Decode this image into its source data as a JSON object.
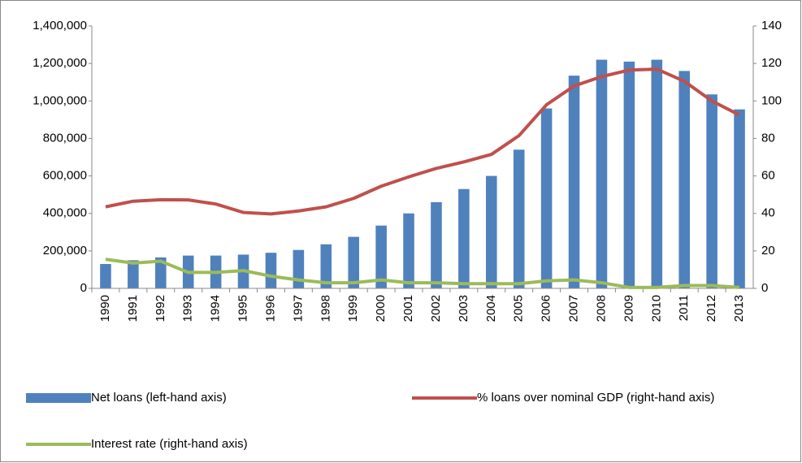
{
  "chart_data": {
    "type": "bar_line",
    "categories": [
      "1990",
      "1991",
      "1992",
      "1993",
      "1994",
      "1995",
      "1996",
      "1997",
      "1998",
      "1999",
      "2000",
      "2001",
      "2002",
      "2003",
      "2004",
      "2005",
      "2006",
      "2007",
      "2008",
      "2009",
      "2010",
      "2011",
      "2012",
      "2013"
    ],
    "series": [
      {
        "name": "Net loans (left-hand axis)",
        "type": "bar",
        "color": "#4f81bd",
        "values": [
          130000,
          150000,
          165000,
          175000,
          175000,
          180000,
          190000,
          205000,
          235000,
          275000,
          335000,
          400000,
          460000,
          530000,
          600000,
          740000,
          960000,
          1135000,
          1220000,
          1210000,
          1220000,
          1160000,
          1035000,
          955000
        ]
      },
      {
        "name": "% loans over nominal GDP (right-hand axis)",
        "type": "line",
        "axis": "y2",
        "color": "#c0504d",
        "values": [
          43.5,
          46.5,
          47.3,
          47.2,
          45,
          40.5,
          39.7,
          41.3,
          43.5,
          48,
          54.5,
          59.5,
          64,
          67.5,
          71.5,
          81.5,
          98,
          108,
          113,
          116.5,
          117,
          110.5,
          100,
          92.5
        ]
      },
      {
        "name": "Interest rate (right-hand axis)",
        "type": "line",
        "axis": "y2",
        "color": "#9bbb59",
        "values": [
          15.5,
          13.5,
          14.5,
          8.5,
          8.5,
          9.5,
          6.5,
          4.5,
          3,
          3,
          4.5,
          3,
          3,
          2.5,
          2.5,
          2.5,
          4,
          4.5,
          3,
          0.5,
          0.5,
          1.5,
          1.5,
          0.5
        ]
      }
    ],
    "ylim": [
      0,
      1400000
    ],
    "yticks": [
      0,
      {
        "value": 200000,
        "label": "200,000"
      },
      {
        "value": 400000,
        "label": "400,000"
      },
      {
        "value": 600000,
        "label": "600,000"
      },
      {
        "value": 800000,
        "label": "800,000"
      },
      {
        "value": 1000000,
        "label": "1,000,000"
      },
      {
        "value": 1200000,
        "label": "1,200,000"
      },
      {
        "value": 1400000,
        "label": "1,400,000"
      }
    ],
    "y2lim": [
      0,
      140
    ],
    "y2ticks": [
      0,
      20,
      40,
      60,
      80,
      100,
      120,
      140
    ],
    "legend": "bottom"
  }
}
